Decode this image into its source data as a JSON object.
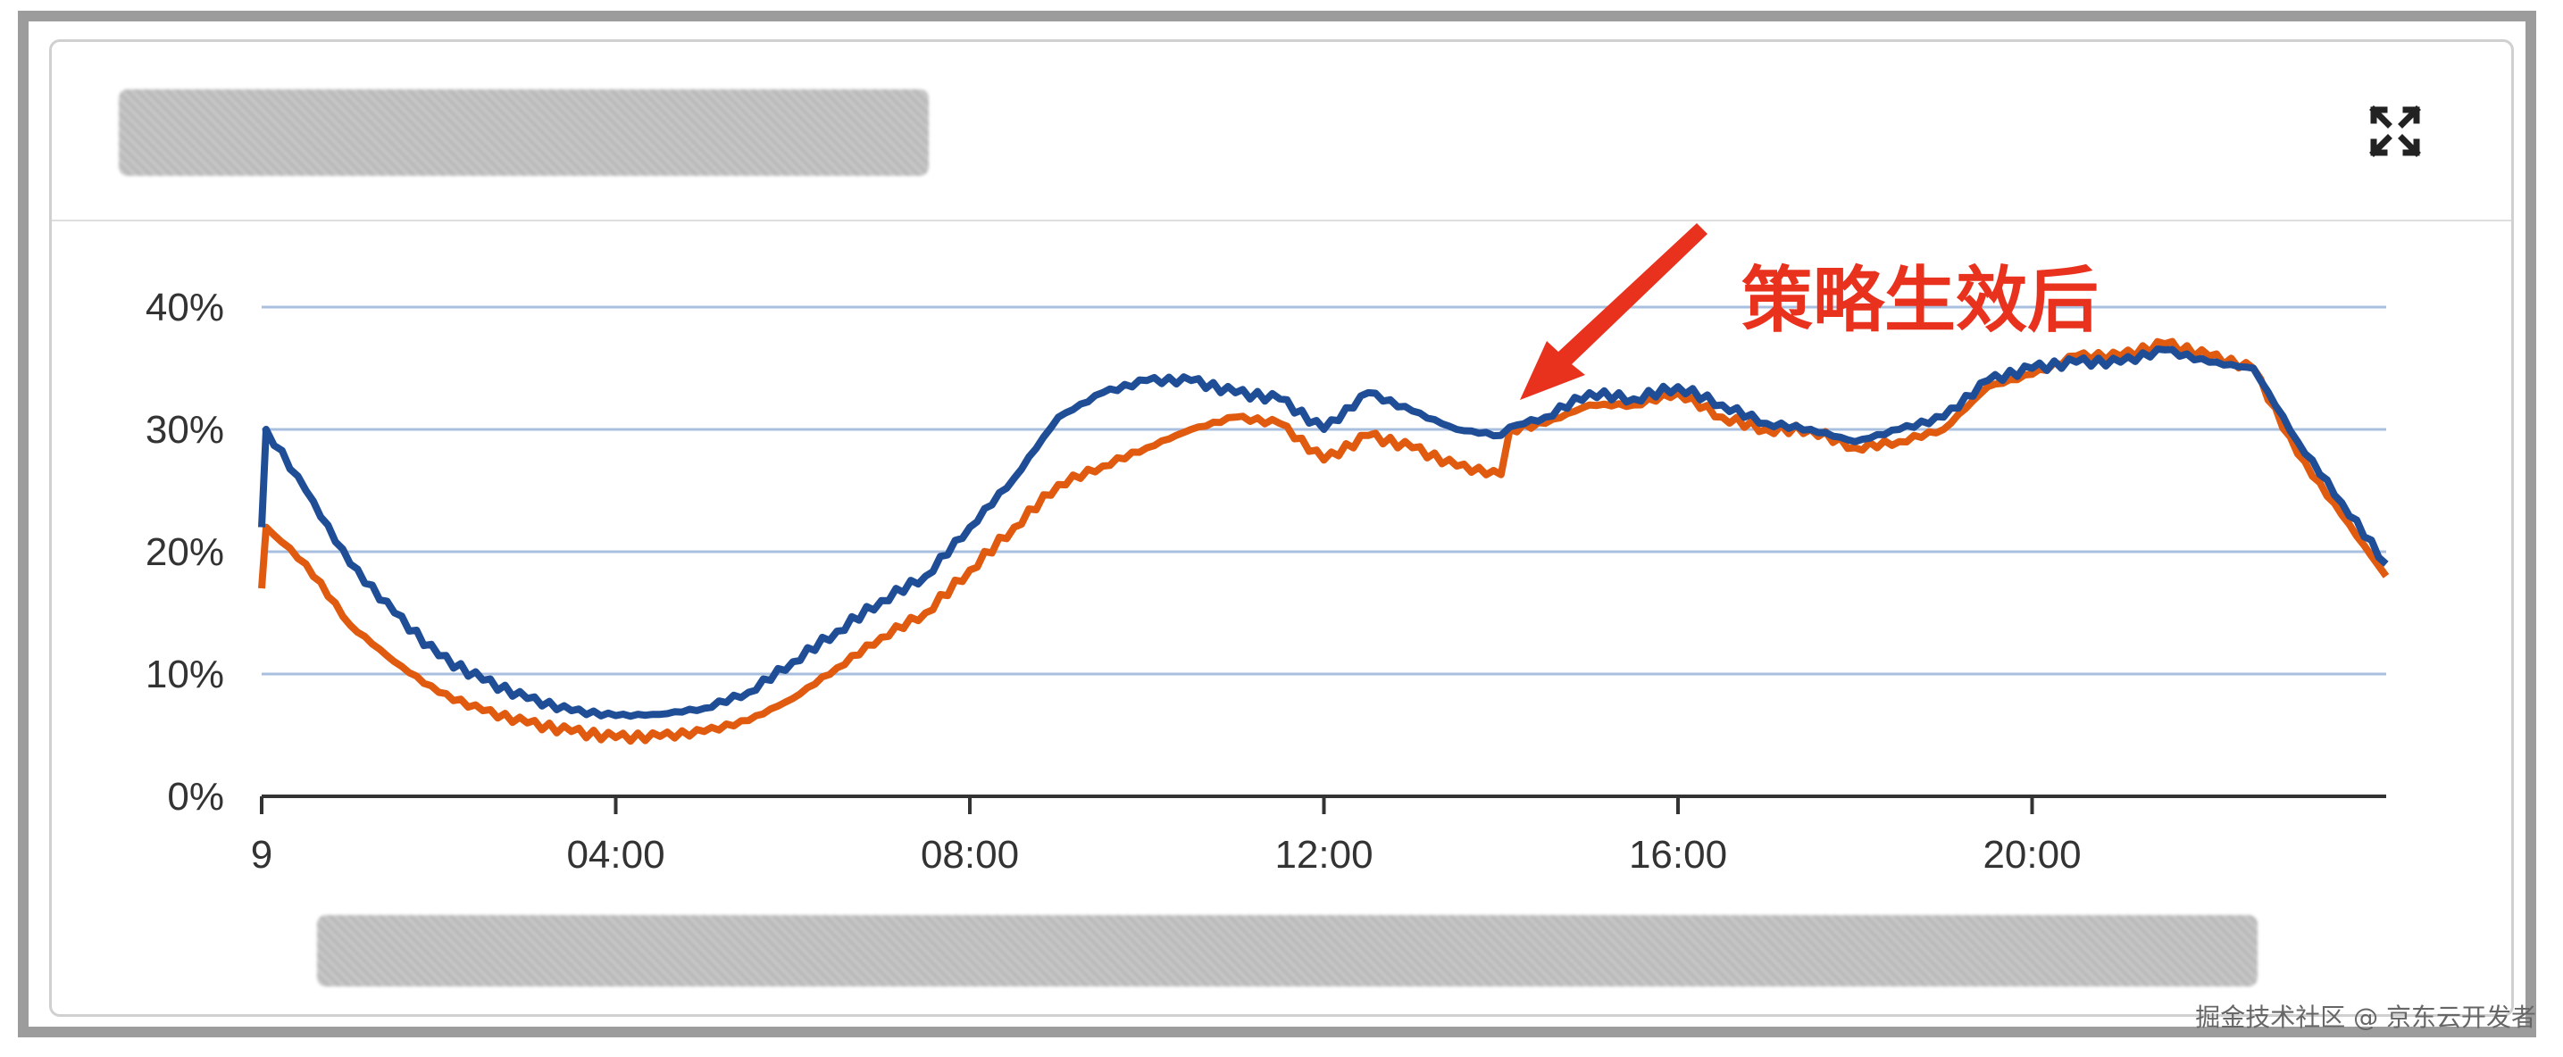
{
  "annotation": {
    "text": "策略生效后",
    "color": "#e8321e"
  },
  "watermark": "掘金技术社区 @ 京东云开发者",
  "header": {
    "expand_icon": "expand-icon"
  },
  "chart_data": {
    "type": "line",
    "title": "",
    "xlabel": "",
    "ylabel": "",
    "xlim": [
      0,
      24
    ],
    "ylim": [
      0,
      40
    ],
    "grid": true,
    "x_ticks": [
      {
        "v": 0,
        "label": "9"
      },
      {
        "v": 4,
        "label": "04:00"
      },
      {
        "v": 8,
        "label": "08:00"
      },
      {
        "v": 12,
        "label": "12:00"
      },
      {
        "v": 16,
        "label": "16:00"
      },
      {
        "v": 20,
        "label": "20:00"
      }
    ],
    "y_ticks": [
      {
        "v": 0,
        "label": "0%"
      },
      {
        "v": 10,
        "label": "10%"
      },
      {
        "v": 20,
        "label": "20%"
      },
      {
        "v": 30,
        "label": "30%"
      },
      {
        "v": 40,
        "label": "40%"
      }
    ],
    "x": [
      0,
      0.05,
      0.5,
      1,
      1.5,
      2,
      2.5,
      3,
      3.5,
      4,
      4.5,
      5,
      5.5,
      6,
      6.5,
      7,
      7.5,
      8,
      8.5,
      9,
      9.5,
      10,
      10.5,
      11,
      11.5,
      12,
      12.5,
      13,
      13.5,
      14,
      14.1,
      14.5,
      15,
      15.5,
      16,
      16.5,
      17,
      17.5,
      18,
      18.5,
      19,
      19.5,
      20,
      20.5,
      21,
      21.5,
      22,
      22.5,
      23,
      23.5,
      24
    ],
    "series": [
      {
        "color": "#1f4e96",
        "values": [
          22,
          30,
          25,
          19,
          15,
          11.5,
          9.5,
          8,
          7,
          6.6,
          6.7,
          7.2,
          8.5,
          11,
          13.5,
          16,
          18,
          22,
          26,
          31,
          33,
          34,
          34,
          33,
          32.5,
          30,
          33,
          31.5,
          30,
          29.5,
          30.2,
          31,
          33,
          32.5,
          33.5,
          32,
          30.5,
          30,
          29,
          30,
          31,
          34,
          35,
          35.5,
          35.5,
          36.5,
          35.5,
          35,
          29,
          24,
          19
        ]
      },
      {
        "color": "#e05a10",
        "values": [
          17,
          22,
          19,
          14,
          11,
          8.5,
          7,
          6,
          5.3,
          4.8,
          4.9,
          5.3,
          6.2,
          8,
          10.5,
          13,
          15,
          18.5,
          22,
          25.5,
          27,
          28.5,
          30,
          31,
          30.5,
          27.5,
          29.5,
          28.5,
          27,
          26.3,
          30,
          30.5,
          32,
          32,
          33,
          31,
          30,
          30,
          28.5,
          29,
          30,
          33.5,
          34.5,
          36,
          36,
          37,
          36,
          35,
          28,
          23,
          18
        ]
      }
    ]
  }
}
